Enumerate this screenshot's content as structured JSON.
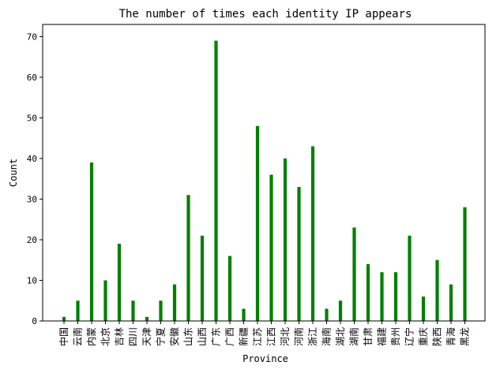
{
  "chart_data": {
    "type": "bar",
    "title": "The number of times each identity IP appears",
    "xlabel": "Province",
    "ylabel": "Count",
    "ylim": [
      0,
      73
    ],
    "yticks": [
      0,
      10,
      20,
      30,
      40,
      50,
      60,
      70
    ],
    "grid": false,
    "legend": "none",
    "bar_color": "#008000",
    "categories": [
      "中国",
      "云南",
      "内蒙",
      "北京",
      "吉林",
      "四川",
      "天津",
      "宁夏",
      "安徽",
      "山东",
      "山西",
      "广东",
      "广西",
      "新疆",
      "江苏",
      "江西",
      "河北",
      "河南",
      "浙江",
      "海南",
      "湖北",
      "湖南",
      "甘肃",
      "福建",
      "贵州",
      "辽宁",
      "重庆",
      "陕西",
      "青海",
      "黑龙"
    ],
    "values": [
      1,
      5,
      39,
      10,
      19,
      5,
      1,
      5,
      9,
      31,
      21,
      69,
      16,
      3,
      48,
      36,
      40,
      33,
      43,
      3,
      5,
      23,
      14,
      12,
      12,
      21,
      6,
      15,
      9,
      28
    ]
  }
}
